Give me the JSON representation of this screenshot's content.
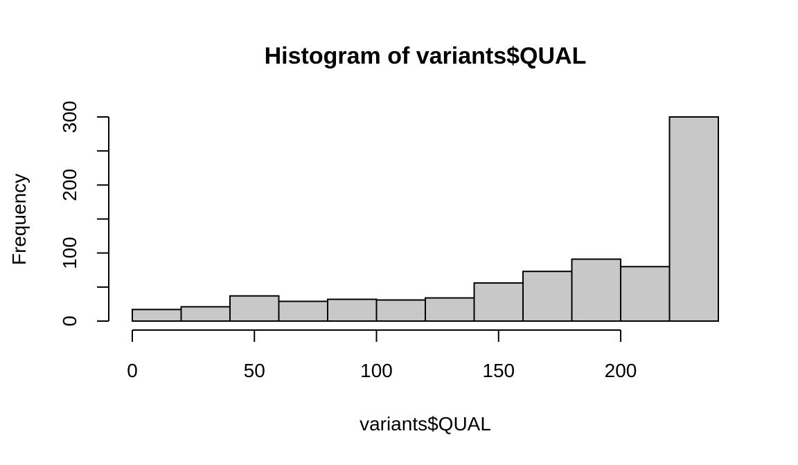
{
  "chart_data": {
    "type": "bar",
    "title": "Histogram of variants$QUAL",
    "xlabel": "variants$QUAL",
    "ylabel": "Frequency",
    "bins": [
      {
        "from": 0,
        "to": 20,
        "count": 17
      },
      {
        "from": 20,
        "to": 40,
        "count": 21
      },
      {
        "from": 40,
        "to": 60,
        "count": 37
      },
      {
        "from": 60,
        "to": 80,
        "count": 29
      },
      {
        "from": 80,
        "to": 100,
        "count": 32
      },
      {
        "from": 100,
        "to": 120,
        "count": 31
      },
      {
        "from": 120,
        "to": 140,
        "count": 34
      },
      {
        "from": 140,
        "to": 160,
        "count": 56
      },
      {
        "from": 160,
        "to": 180,
        "count": 73
      },
      {
        "from": 180,
        "to": 200,
        "count": 91
      },
      {
        "from": 200,
        "to": 220,
        "count": 80
      },
      {
        "from": 220,
        "to": 240,
        "count": 300
      }
    ],
    "xlim": [
      0,
      240
    ],
    "ylim": [
      0,
      300
    ],
    "xticks": [
      0,
      50,
      100,
      150,
      200
    ],
    "xtick_labels": [
      "0",
      "50",
      "100",
      "150",
      "200"
    ],
    "yticks": [
      0,
      50,
      100,
      150,
      200,
      250,
      300
    ],
    "ytick_labels": [
      "0",
      "",
      "100",
      "",
      "200",
      "",
      "300"
    ],
    "bar_fill": "#c8c8c8",
    "bar_stroke": "#000000",
    "grid": false,
    "legend": "none"
  }
}
